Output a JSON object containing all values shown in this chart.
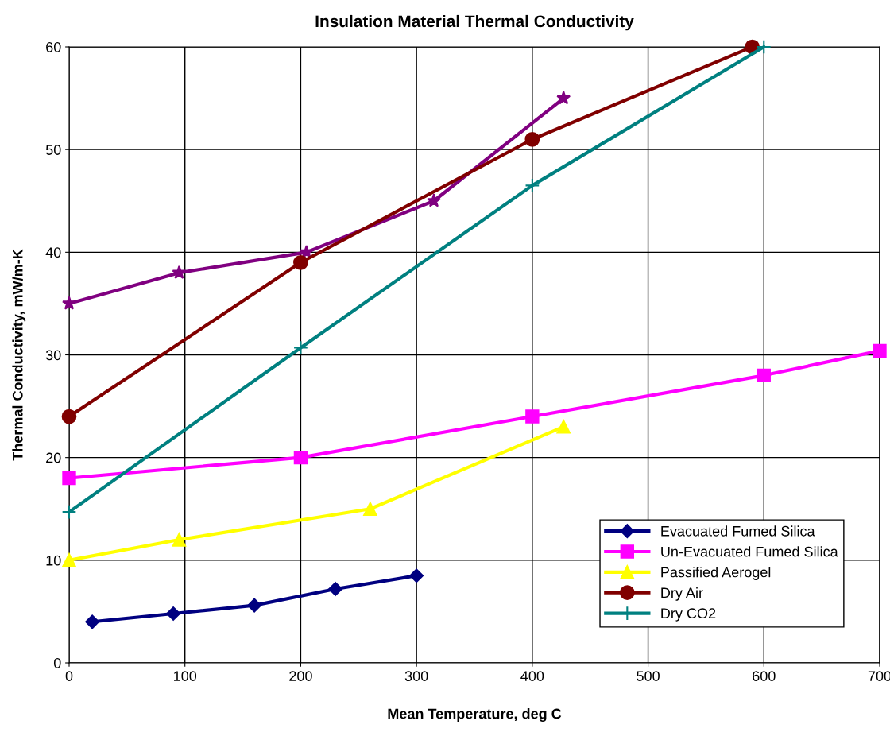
{
  "chart_data": {
    "type": "line",
    "title": "Insulation Material Thermal Conductivity",
    "xlabel": "Mean Temperature, deg C",
    "ylabel": "Thermal Conductivity, mW/m-K",
    "xlim": [
      0,
      700
    ],
    "xticks": [
      0,
      100,
      200,
      300,
      400,
      500,
      600,
      700
    ],
    "ylim": [
      0,
      60
    ],
    "yticks": [
      0,
      10,
      20,
      30,
      40,
      50,
      60
    ],
    "grid": true,
    "legend": "bottom right",
    "series": [
      {
        "name": "Evacuated Fumed Silica",
        "color": "#000080",
        "marker": "diamond",
        "x": [
          20,
          90,
          160,
          230,
          300
        ],
        "values": [
          4,
          4.8,
          5.6,
          7.2,
          8.5
        ]
      },
      {
        "name": "Un-Evacuated Fumed Silica",
        "color": "#ff00ff",
        "marker": "square",
        "x": [
          0,
          200,
          400,
          600,
          700
        ],
        "values": [
          18,
          20,
          24,
          28,
          30.4
        ]
      },
      {
        "name": "Passified Aerogel",
        "color": "#ffff00",
        "marker": "triangle",
        "x": [
          0,
          95,
          260,
          427
        ],
        "values": [
          10,
          12,
          15,
          23
        ]
      },
      {
        "color": "#800080",
        "marker": "star",
        "x": [
          0,
          95,
          205,
          315,
          427
        ],
        "values": [
          35,
          38,
          40,
          45,
          55
        ]
      },
      {
        "name": "Dry Air",
        "color": "#800000",
        "marker": "circle",
        "x": [
          0,
          200,
          400,
          590
        ],
        "values": [
          24,
          39,
          51,
          60
        ]
      },
      {
        "name": "Dry CO2",
        "color": "#008080",
        "marker": "cross",
        "x": [
          0,
          200,
          400,
          600
        ],
        "values": [
          14.7,
          30.7,
          46.5,
          60
        ]
      }
    ]
  }
}
